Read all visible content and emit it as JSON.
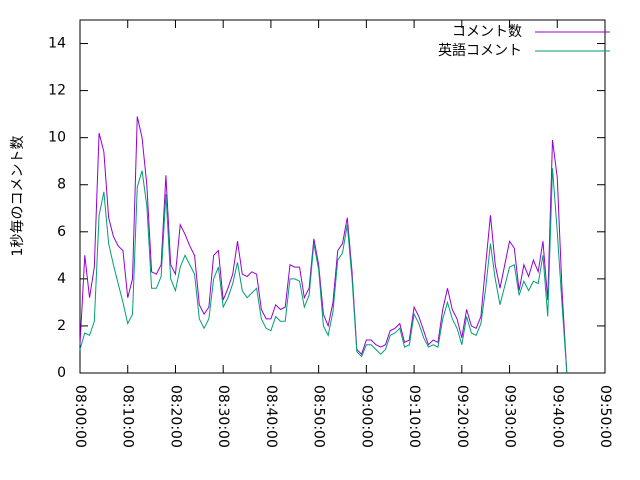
{
  "chart_data": {
    "type": "line",
    "y_label": "1秒毎のコメント数",
    "x": [
      "08:00:00",
      "08:01:00",
      "08:02:00",
      "08:03:00",
      "08:04:00",
      "08:05:00",
      "08:06:00",
      "08:07:00",
      "08:08:00",
      "08:09:00",
      "08:10:00",
      "08:11:00",
      "08:12:00",
      "08:13:00",
      "08:14:00",
      "08:15:00",
      "08:16:00",
      "08:17:00",
      "08:18:00",
      "08:19:00",
      "08:20:00",
      "08:21:00",
      "08:22:00",
      "08:23:00",
      "08:24:00",
      "08:25:00",
      "08:26:00",
      "08:27:00",
      "08:28:00",
      "08:29:00",
      "08:30:00",
      "08:31:00",
      "08:32:00",
      "08:33:00",
      "08:34:00",
      "08:35:00",
      "08:36:00",
      "08:37:00",
      "08:38:00",
      "08:39:00",
      "08:40:00",
      "08:41:00",
      "08:42:00",
      "08:43:00",
      "08:44:00",
      "08:45:00",
      "08:46:00",
      "08:47:00",
      "08:48:00",
      "08:49:00",
      "08:50:00",
      "08:51:00",
      "08:52:00",
      "08:53:00",
      "08:54:00",
      "08:55:00",
      "08:56:00",
      "08:57:00",
      "08:58:00",
      "08:59:00",
      "09:00:00",
      "09:01:00",
      "09:02:00",
      "09:03:00",
      "09:04:00",
      "09:05:00",
      "09:06:00",
      "09:07:00",
      "09:08:00",
      "09:09:00",
      "09:10:00",
      "09:11:00",
      "09:12:00",
      "09:13:00",
      "09:14:00",
      "09:15:00",
      "09:16:00",
      "09:17:00",
      "09:18:00",
      "09:19:00",
      "09:20:00",
      "09:21:00",
      "09:22:00",
      "09:23:00",
      "09:24:00",
      "09:25:00",
      "09:26:00",
      "09:27:00",
      "09:28:00",
      "09:29:00",
      "09:30:00",
      "09:31:00",
      "09:32:00",
      "09:33:00",
      "09:34:00",
      "09:35:00",
      "09:36:00",
      "09:37:00",
      "09:38:00",
      "09:39:00",
      "09:40:00",
      "09:41:00",
      "09:42:00"
    ],
    "series": [
      {
        "name": "コメント数",
        "color": "#9400d3",
        "values": [
          1.2,
          5.0,
          3.2,
          4.5,
          10.2,
          9.4,
          6.6,
          5.8,
          5.4,
          5.2,
          3.2,
          4.0,
          10.9,
          10.0,
          8.0,
          4.3,
          4.2,
          4.6,
          8.4,
          4.6,
          4.2,
          6.3,
          5.9,
          5.4,
          5.0,
          2.9,
          2.5,
          2.8,
          5.0,
          5.2,
          3.1,
          3.6,
          4.2,
          5.6,
          4.2,
          4.1,
          4.3,
          4.2,
          2.7,
          2.3,
          2.3,
          2.9,
          2.7,
          2.8,
          4.6,
          4.5,
          4.5,
          3.2,
          3.6,
          5.7,
          4.6,
          2.5,
          2.0,
          3.0,
          5.2,
          5.5,
          6.6,
          4.3,
          1.0,
          0.8,
          1.4,
          1.4,
          1.2,
          1.1,
          1.2,
          1.8,
          1.9,
          2.1,
          1.3,
          1.4,
          2.8,
          2.4,
          1.8,
          1.2,
          1.4,
          1.3,
          2.7,
          3.6,
          2.7,
          2.3,
          1.5,
          2.7,
          2.0,
          1.9,
          2.4,
          4.6,
          6.7,
          4.6,
          3.6,
          4.6,
          5.6,
          5.3,
          3.5,
          4.6,
          4.1,
          4.8,
          4.3,
          5.6,
          3.1,
          9.9,
          8.3,
          3.5,
          0
        ]
      },
      {
        "name": "英語コメント",
        "color": "#009e73",
        "values": [
          1.0,
          1.7,
          1.6,
          2.2,
          6.7,
          7.7,
          5.5,
          4.6,
          3.8,
          3.0,
          2.1,
          2.5,
          7.9,
          8.6,
          7.1,
          3.6,
          3.6,
          4.1,
          7.6,
          4.0,
          3.5,
          4.5,
          5.0,
          4.6,
          4.2,
          2.3,
          1.9,
          2.3,
          4.0,
          4.5,
          2.8,
          3.2,
          3.8,
          4.7,
          3.5,
          3.2,
          3.4,
          3.6,
          2.3,
          1.9,
          1.8,
          2.4,
          2.2,
          2.2,
          4.0,
          4.0,
          3.9,
          2.8,
          3.3,
          5.5,
          4.4,
          2.0,
          1.6,
          2.6,
          4.8,
          5.1,
          6.3,
          4.0,
          0.9,
          0.7,
          1.2,
          1.2,
          1.0,
          0.8,
          1.0,
          1.6,
          1.7,
          1.9,
          1.1,
          1.2,
          2.5,
          2.1,
          1.5,
          1.1,
          1.2,
          1.1,
          2.3,
          3.0,
          2.3,
          1.9,
          1.2,
          2.4,
          1.7,
          1.6,
          2.1,
          3.6,
          5.5,
          4.0,
          2.9,
          3.7,
          4.5,
          4.6,
          3.3,
          3.9,
          3.5,
          3.9,
          3.8,
          5.0,
          2.4,
          8.7,
          6.0,
          2.9,
          0
        ]
      }
    ],
    "xlim": [
      "08:00:00",
      "09:50:00"
    ],
    "xticks": [
      "08:00:00",
      "08:10:00",
      "08:20:00",
      "08:30:00",
      "08:40:00",
      "08:50:00",
      "09:00:00",
      "09:10:00",
      "09:20:00",
      "09:30:00",
      "09:40:00",
      "09:50:00"
    ],
    "ylim": [
      0,
      15
    ],
    "yticks": [
      0,
      2,
      4,
      6,
      8,
      10,
      12,
      14
    ],
    "legend": "top-right"
  }
}
